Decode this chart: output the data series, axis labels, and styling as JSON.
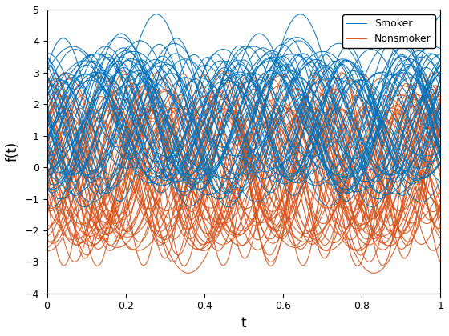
{
  "title": "",
  "xlabel": "t",
  "ylabel": "f(t)",
  "xlim": [
    0,
    1
  ],
  "ylim": [
    -4,
    5
  ],
  "smoker_color": "#0072BD",
  "nonsmoker_color": "#D95319",
  "n_smoker": 50,
  "n_nonsmoker": 50,
  "n_points": 500,
  "smoker_mean": 1.5,
  "nonsmoker_mean": 0.0,
  "smoker_amp_mean": 2.0,
  "smoker_amp_std": 0.4,
  "nonsmoker_amp_mean": 2.2,
  "nonsmoker_amp_std": 0.5,
  "smoker_freq_min": 2,
  "smoker_freq_max": 4,
  "nonsmoker_freq_min": 2,
  "nonsmoker_freq_max": 5,
  "line_width": 0.7,
  "legend_fontsize": 9,
  "tick_fontsize": 9,
  "label_fontsize": 12,
  "background_color": "#ffffff",
  "random_seed": 7,
  "fig_width": 5.6,
  "fig_height": 4.2,
  "dpi": 100,
  "yticks": [
    -4,
    -3,
    -2,
    -1,
    0,
    1,
    2,
    3,
    4,
    5
  ],
  "xticks": [
    0,
    0.2,
    0.4,
    0.6,
    0.8,
    1.0
  ]
}
